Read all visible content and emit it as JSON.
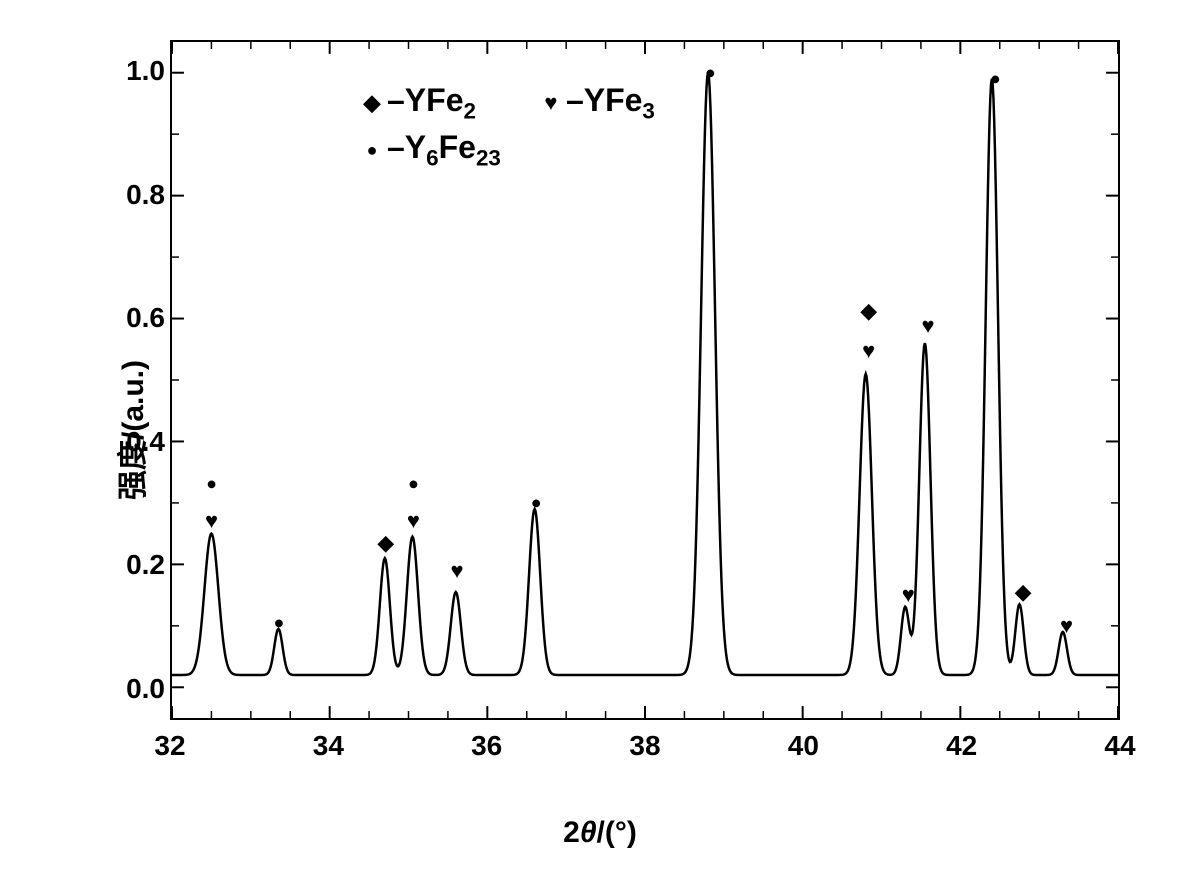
{
  "chart": {
    "type": "line",
    "xlabel_prefix": "2",
    "xlabel_theta": "θ",
    "xlabel_suffix": "/(°)",
    "ylabel": "强度/(a.u.)",
    "xlim": [
      32,
      44
    ],
    "ylim": [
      -0.05,
      1.05
    ],
    "xticks": [
      32,
      34,
      36,
      38,
      40,
      42,
      44
    ],
    "yticks": [
      0.0,
      0.2,
      0.4,
      0.6,
      0.8,
      1.0
    ],
    "xtick_labels": [
      "32",
      "34",
      "36",
      "38",
      "40",
      "42",
      "44"
    ],
    "ytick_labels": [
      "0.0",
      "0.2",
      "0.4",
      "0.6",
      "0.8",
      "1.0"
    ],
    "minor_tick_count": 3,
    "line_color": "#000000",
    "line_width": 2.5,
    "background_color": "#ffffff",
    "border_color": "#000000",
    "border_width": 2.5,
    "tick_fontsize": 28,
    "label_fontsize": 30,
    "legend_fontsize": 32,
    "peaks": [
      {
        "x": 32.5,
        "height": 0.25,
        "width": 0.25
      },
      {
        "x": 33.35,
        "height": 0.095,
        "width": 0.15
      },
      {
        "x": 34.7,
        "height": 0.21,
        "width": 0.18
      },
      {
        "x": 35.05,
        "height": 0.245,
        "width": 0.2
      },
      {
        "x": 35.6,
        "height": 0.155,
        "width": 0.18
      },
      {
        "x": 36.6,
        "height": 0.29,
        "width": 0.2
      },
      {
        "x": 38.8,
        "height": 1.0,
        "width": 0.25
      },
      {
        "x": 40.8,
        "height": 0.51,
        "width": 0.22
      },
      {
        "x": 41.3,
        "height": 0.13,
        "width": 0.15
      },
      {
        "x": 41.55,
        "height": 0.56,
        "width": 0.2
      },
      {
        "x": 42.4,
        "height": 0.99,
        "width": 0.22
      },
      {
        "x": 42.75,
        "height": 0.135,
        "width": 0.15
      },
      {
        "x": 43.3,
        "height": 0.09,
        "width": 0.15
      }
    ],
    "baseline": 0.02,
    "markers": [
      {
        "x": 32.5,
        "y": 0.335,
        "type": "circle"
      },
      {
        "x": 32.5,
        "y": 0.275,
        "type": "heart"
      },
      {
        "x": 33.35,
        "y": 0.11,
        "type": "circle"
      },
      {
        "x": 34.7,
        "y": 0.24,
        "type": "diamond"
      },
      {
        "x": 35.05,
        "y": 0.335,
        "type": "circle"
      },
      {
        "x": 35.05,
        "y": 0.275,
        "type": "heart"
      },
      {
        "x": 35.6,
        "y": 0.195,
        "type": "heart"
      },
      {
        "x": 36.6,
        "y": 0.305,
        "type": "circle"
      },
      {
        "x": 38.8,
        "y": 1.0,
        "type": "circle"
      },
      {
        "x": 40.8,
        "y": 0.615,
        "type": "diamond"
      },
      {
        "x": 40.8,
        "y": 0.55,
        "type": "heart"
      },
      {
        "x": 41.3,
        "y": 0.155,
        "type": "heart"
      },
      {
        "x": 41.55,
        "y": 0.59,
        "type": "heart"
      },
      {
        "x": 42.4,
        "y": 0.99,
        "type": "circle"
      },
      {
        "x": 42.75,
        "y": 0.16,
        "type": "diamond"
      },
      {
        "x": 43.3,
        "y": 0.105,
        "type": "heart"
      }
    ],
    "legend_items": [
      {
        "marker": "diamond",
        "text_prefix": "–YFe",
        "subscript": "2"
      },
      {
        "marker": "heart",
        "text_prefix": "–YFe",
        "subscript": "3"
      },
      {
        "marker": "circle",
        "text_prefix": "–Y",
        "subscript1": "6",
        "text_mid": "Fe",
        "subscript2": "23"
      }
    ],
    "marker_glyphs": {
      "diamond": "◆",
      "circle": "●",
      "heart": "♥"
    }
  }
}
